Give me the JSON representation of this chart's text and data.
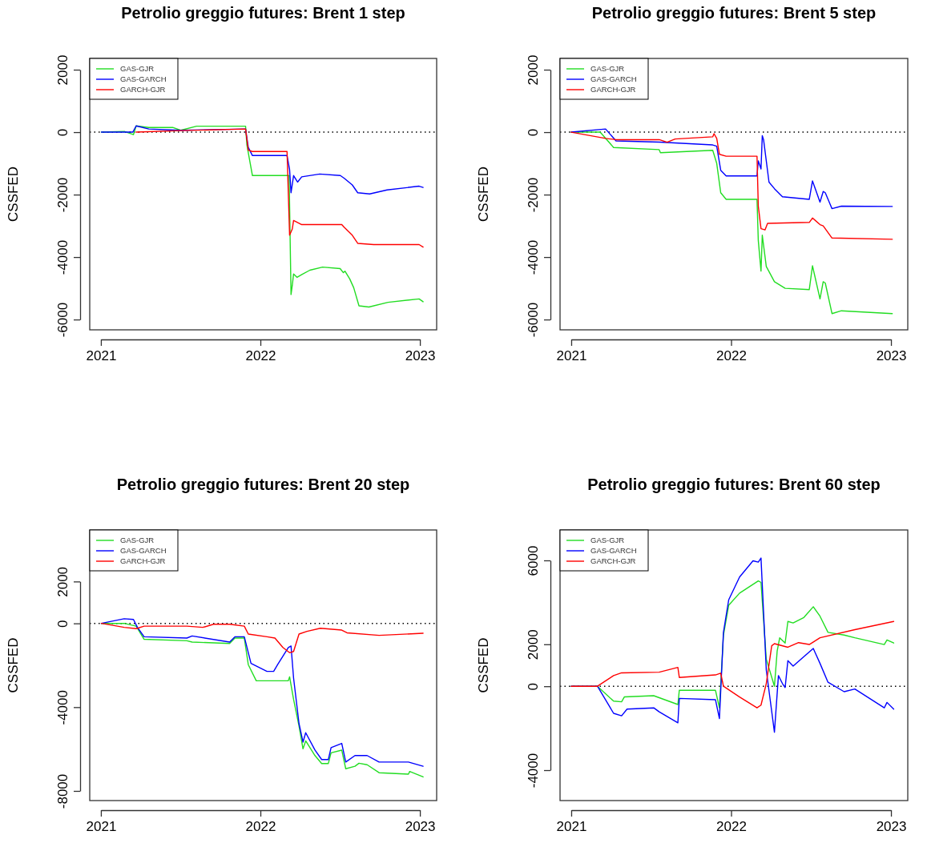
{
  "chart_data": [
    {
      "type": "line",
      "title": "Petrolio greggio futures: Brent 1 step",
      "ylabel": "CSSFED",
      "xlim": [
        2020.93,
        2023.105
      ],
      "xticks": [
        2021,
        2022,
        2023
      ],
      "ylim": [
        -6330,
        2360
      ],
      "yticks": [
        2000,
        0,
        -2000,
        -4000,
        -6000
      ],
      "legend": "top left",
      "ref_lines": [
        {
          "axis": "y",
          "value": 0,
          "line_style": "dotted",
          "color": "#000000"
        }
      ],
      "series": [
        {
          "name": "GAS-GJR",
          "color": "#22dd22",
          "x": [
            2021.003,
            2021.15,
            2021.204,
            2021.221,
            2021.3,
            2021.45,
            2021.5,
            2021.6,
            2021.907,
            2021.915,
            2021.93,
            2021.95,
            2022.167,
            2022.18,
            2022.192,
            2022.2,
            2022.208,
            2022.23,
            2022.26,
            2022.31,
            2022.39,
            2022.5,
            2022.52,
            2022.53,
            2022.56,
            2022.585,
            2022.618,
            2022.68,
            2022.8,
            2022.995,
            2023.02
          ],
          "values": [
            0,
            20,
            -80,
            200,
            150,
            150,
            60,
            190,
            190,
            -400,
            -830,
            -1390,
            -1390,
            -1390,
            -5200,
            -4900,
            -4540,
            -4650,
            -4560,
            -4420,
            -4320,
            -4370,
            -4500,
            -4450,
            -4700,
            -4980,
            -5560,
            -5600,
            -5450,
            -5340,
            -5430
          ]
        },
        {
          "name": "GAS-GARCH",
          "color": "#0000ff",
          "x": [
            2021.003,
            2021.2,
            2021.221,
            2021.3,
            2021.5,
            2021.907,
            2021.924,
            2021.95,
            2022.167,
            2022.183,
            2022.192,
            2022.208,
            2022.233,
            2022.259,
            2022.372,
            2022.501,
            2022.526,
            2022.576,
            2022.61,
            2022.685,
            2022.794,
            2022.995,
            2023.02
          ],
          "values": [
            0,
            0,
            200,
            100,
            60,
            100,
            -490,
            -750,
            -750,
            -1200,
            -1940,
            -1390,
            -1600,
            -1430,
            -1340,
            -1390,
            -1480,
            -1690,
            -1940,
            -1980,
            -1850,
            -1730,
            -1770
          ]
        },
        {
          "name": "GARCH-GJR",
          "color": "#ff0000",
          "x": [
            2021.221,
            2021.5,
            2021.907,
            2021.924,
            2021.95,
            2022.167,
            2022.183,
            2022.2,
            2022.208,
            2022.259,
            2022.372,
            2022.51,
            2022.526,
            2022.576,
            2022.61,
            2022.71,
            2022.995,
            2023.02
          ],
          "values": [
            0,
            50,
            100,
            -580,
            -620,
            -620,
            -3300,
            -3100,
            -2830,
            -2960,
            -2960,
            -2960,
            -3050,
            -3300,
            -3560,
            -3600,
            -3600,
            -3680
          ]
        }
      ]
    },
    {
      "type": "line",
      "title": "Petrolio greggio futures: Brent 5 step",
      "ylabel": "CSSFED",
      "xlim": [
        2020.93,
        2023.105
      ],
      "xticks": [
        2021,
        2022,
        2023
      ],
      "ylim": [
        -6330,
        2360
      ],
      "yticks": [
        2000,
        0,
        -2000,
        -4000,
        -6000
      ],
      "legend": "top left",
      "ref_lines": [
        {
          "axis": "y",
          "value": 0,
          "line_style": "dotted",
          "color": "#000000"
        }
      ],
      "series": [
        {
          "name": "GAS-GJR",
          "color": "#22dd22",
          "x": [
            2021.0,
            2021.181,
            2021.265,
            2021.55,
            2021.558,
            2021.885,
            2021.91,
            2021.935,
            2021.969,
            2022.162,
            2022.17,
            2022.187,
            2022.195,
            2022.22,
            2022.271,
            2022.338,
            2022.489,
            2022.509,
            2022.556,
            2022.576,
            2022.589,
            2022.631,
            2022.69,
            2023.008
          ],
          "values": [
            0,
            0,
            -490,
            -560,
            -660,
            -580,
            -1000,
            -1940,
            -2150,
            -2150,
            -3470,
            -4450,
            -3300,
            -4300,
            -4790,
            -5000,
            -5040,
            -4280,
            -5340,
            -4790,
            -4830,
            -5810,
            -5720,
            -5810
          ]
        },
        {
          "name": "GAS-GARCH",
          "color": "#0000ff",
          "x": [
            2021.0,
            2021.215,
            2021.28,
            2021.55,
            2021.885,
            2021.91,
            2021.935,
            2021.969,
            2022.162,
            2022.17,
            2022.187,
            2022.195,
            2022.203,
            2022.237,
            2022.271,
            2022.321,
            2022.489,
            2022.509,
            2022.556,
            2022.576,
            2022.589,
            2022.631,
            2022.69,
            2023.008
          ],
          "values": [
            0,
            100,
            -280,
            -320,
            -410,
            -450,
            -1220,
            -1400,
            -1400,
            -920,
            -1180,
            -110,
            -240,
            -1600,
            -1810,
            -2070,
            -2150,
            -1560,
            -2240,
            -1900,
            -1940,
            -2450,
            -2370,
            -2380
          ]
        },
        {
          "name": "GARCH-GJR",
          "color": "#ff0000",
          "x": [
            2021.0,
            2021.215,
            2021.28,
            2021.55,
            2021.6,
            2021.65,
            2021.885,
            2021.893,
            2021.91,
            2021.927,
            2021.969,
            2022.162,
            2022.17,
            2022.187,
            2022.212,
            2022.228,
            2022.489,
            2022.509,
            2022.556,
            2022.576,
            2022.631,
            2023.008
          ],
          "values": [
            0,
            -200,
            -240,
            -240,
            -320,
            -220,
            -150,
            -50,
            -200,
            -710,
            -770,
            -770,
            -2370,
            -3090,
            -3130,
            -2920,
            -2890,
            -2750,
            -2960,
            -3000,
            -3390,
            -3430
          ]
        }
      ]
    },
    {
      "type": "line",
      "title": "Petrolio greggio futures: Brent 20 step",
      "ylabel": "CSSFED",
      "xlim": [
        2020.93,
        2023.105
      ],
      "xticks": [
        2021,
        2022,
        2023
      ],
      "ylim": [
        -8460,
        4460
      ],
      "yticks": [
        2000,
        0,
        -4000,
        -8000
      ],
      "legend": "top left",
      "ref_lines": [
        {
          "axis": "y",
          "value": 0,
          "line_style": "dotted",
          "color": "#000000"
        }
      ],
      "series": [
        {
          "name": "GAS-GJR",
          "color": "#22dd22",
          "x": [
            2021.003,
            2021.146,
            2021.221,
            2021.271,
            2021.539,
            2021.572,
            2021.807,
            2021.84,
            2021.899,
            2021.924,
            2021.974,
            2022.175,
            2022.183,
            2022.208,
            2022.242,
            2022.267,
            2022.284,
            2022.342,
            2022.384,
            2022.426,
            2022.443,
            2022.51,
            2022.535,
            2022.593,
            2022.618,
            2022.669,
            2022.744,
            2022.928,
            2022.936,
            2023.02
          ],
          "values": [
            0,
            0,
            -130,
            -760,
            -830,
            -890,
            -960,
            -700,
            -700,
            -1970,
            -2740,
            -2740,
            -2550,
            -3630,
            -4900,
            -5990,
            -5610,
            -6310,
            -6690,
            -6690,
            -6180,
            -6050,
            -6940,
            -6820,
            -6680,
            -6750,
            -7130,
            -7200,
            -7070,
            -7330
          ]
        },
        {
          "name": "GAS-GARCH",
          "color": "#0000ff",
          "x": [
            2021.003,
            2021.146,
            2021.204,
            2021.229,
            2021.271,
            2021.539,
            2021.572,
            2021.807,
            2021.84,
            2021.899,
            2021.941,
            2022.041,
            2022.083,
            2022.108,
            2022.175,
            2022.192,
            2022.208,
            2022.242,
            2022.267,
            2022.284,
            2022.342,
            2022.384,
            2022.426,
            2022.443,
            2022.51,
            2022.535,
            2022.593,
            2022.669,
            2022.744,
            2022.928,
            2023.02
          ],
          "values": [
            0,
            220,
            190,
            -190,
            -640,
            -700,
            -600,
            -890,
            -640,
            -640,
            -1910,
            -2290,
            -2290,
            -1970,
            -1150,
            -1080,
            -2610,
            -4780,
            -5670,
            -5220,
            -6050,
            -6500,
            -6500,
            -5930,
            -5730,
            -6620,
            -6310,
            -6310,
            -6620,
            -6620,
            -6820
          ]
        },
        {
          "name": "GARCH-GJR",
          "color": "#ff0000",
          "x": [
            2021.003,
            2021.146,
            2021.221,
            2021.271,
            2021.539,
            2021.639,
            2021.706,
            2021.807,
            2021.899,
            2021.924,
            2022.041,
            2022.091,
            2022.141,
            2022.183,
            2022.208,
            2022.242,
            2022.292,
            2022.376,
            2022.51,
            2022.543,
            2022.744,
            2023.02
          ],
          "values": [
            0,
            -190,
            -250,
            -130,
            -130,
            -190,
            -40,
            -40,
            -130,
            -510,
            -640,
            -700,
            -1150,
            -1400,
            -1340,
            -510,
            -380,
            -230,
            -320,
            -450,
            -570,
            -470
          ]
        }
      ]
    },
    {
      "type": "line",
      "title": "Petrolio greggio futures: Brent 60 step",
      "ylabel": "CSSFED",
      "xlim": [
        2020.93,
        2023.105
      ],
      "xticks": [
        2021,
        2022,
        2023
      ],
      "ylim": [
        -5450,
        7450
      ],
      "yticks": [
        6000,
        2000,
        0,
        -4000
      ],
      "legend": "top left",
      "ref_lines": [
        {
          "axis": "y",
          "value": 0,
          "line_style": "dotted",
          "color": "#000000"
        }
      ],
      "series": [
        {
          "name": "GAS-GJR",
          "color": "#22dd22",
          "x": [
            2021.0,
            2021.164,
            2021.265,
            2021.315,
            2021.332,
            2021.516,
            2021.667,
            2021.676,
            2021.902,
            2021.927,
            2021.952,
            2021.985,
            2022.053,
            2022.17,
            2022.187,
            2022.22,
            2022.271,
            2022.288,
            2022.304,
            2022.338,
            2022.355,
            2022.388,
            2022.455,
            2022.514,
            2022.556,
            2022.606,
            2022.707,
            2022.774,
            2022.958,
            2022.975,
            2023.017
          ],
          "values": [
            0,
            0,
            -710,
            -740,
            -510,
            -450,
            -870,
            -190,
            -190,
            -1030,
            2440,
            3860,
            4440,
            5020,
            4950,
            1290,
            0,
            1670,
            2310,
            2060,
            3090,
            3020,
            3280,
            3790,
            3340,
            2570,
            2440,
            2310,
            1990,
            2210,
            2060
          ]
        },
        {
          "name": "GAS-GARCH",
          "color": "#0000ff",
          "x": [
            2021.0,
            2021.164,
            2021.265,
            2021.315,
            2021.349,
            2021.516,
            2021.55,
            2021.667,
            2021.676,
            2021.902,
            2021.927,
            2021.952,
            2021.985,
            2022.053,
            2022.137,
            2022.17,
            2022.187,
            2022.22,
            2022.271,
            2022.296,
            2022.321,
            2022.338,
            2022.355,
            2022.388,
            2022.455,
            2022.514,
            2022.556,
            2022.606,
            2022.707,
            2022.774,
            2022.958,
            2022.975,
            2023.017
          ],
          "values": [
            0,
            0,
            -1290,
            -1410,
            -1090,
            -1030,
            -1220,
            -1740,
            -580,
            -640,
            -1540,
            2570,
            4120,
            5210,
            5980,
            5920,
            6110,
            770,
            -2190,
            510,
            130,
            -60,
            1220,
            960,
            1410,
            1800,
            1090,
            190,
            -260,
            -130,
            -1030,
            -770,
            -1090
          ]
        },
        {
          "name": "GARCH-GJR",
          "color": "#ff0000",
          "x": [
            2021.0,
            2021.164,
            2021.265,
            2021.315,
            2021.55,
            2021.667,
            2021.676,
            2021.902,
            2021.935,
            2021.952,
            2022.053,
            2022.162,
            2022.187,
            2022.22,
            2022.254,
            2022.271,
            2022.355,
            2022.422,
            2022.489,
            2022.556,
            2022.774,
            2023.017
          ],
          "values": [
            0,
            0,
            510,
            640,
            670,
            900,
            420,
            540,
            620,
            0,
            -510,
            -1030,
            -900,
            130,
            1930,
            2030,
            1860,
            2080,
            1990,
            2310,
            2700,
            3090
          ]
        }
      ]
    }
  ]
}
